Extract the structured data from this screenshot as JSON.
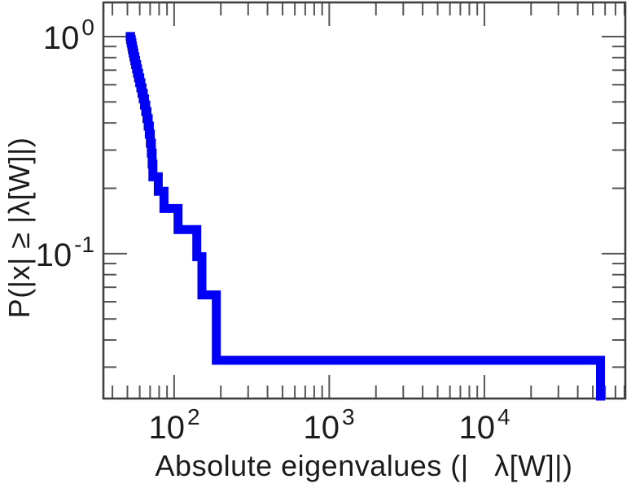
{
  "figure": {
    "background": "#ffffff",
    "frame_color": "#3f3f3f",
    "tick_color": "#555555",
    "text_color": "#1b1b1b",
    "line_color": "#0000f5"
  },
  "chart_data": {
    "type": "line",
    "subtype": "empirical-ccdf-step",
    "title": "",
    "xlabel": "Absolute eigenvalues (|   λ[W]|)",
    "ylabel": "P(|x| ≥ |λ[W]|)",
    "x_scale": "log",
    "y_scale": "log",
    "grid": false,
    "legend": "none",
    "xlim": [
      35,
      81000
    ],
    "ylim": [
      0.0215,
      1.436
    ],
    "n_eigenvalues": 31,
    "plateau_probabilities_note": "plateaus at k/31 from 1.0 down to 1/31 = 0.0323",
    "eigenvalues": [
      52.4,
      52.9,
      53.4,
      53.9,
      54.5,
      55.1,
      55.8,
      56.5,
      57.3,
      58.1,
      59.0,
      60.0,
      61.0,
      62.1,
      63.2,
      64.4,
      65.6,
      66.8,
      68.0,
      69.2,
      70.3,
      71.3,
      72.2,
      73.0,
      79,
      86,
      106,
      140,
      151,
      187,
      56000
    ],
    "x_ticks": [
      {
        "v": 100,
        "base": "10",
        "exp": "2"
      },
      {
        "v": 1000,
        "base": "10",
        "exp": "3"
      },
      {
        "v": 10000,
        "base": "10",
        "exp": "4"
      }
    ],
    "y_ticks": [
      {
        "v": 1,
        "base": "10",
        "exp": "0"
      },
      {
        "v": 0.1,
        "base": "10",
        "exp": "-1"
      }
    ],
    "x_minor_ticks": [
      40,
      50,
      60,
      70,
      80,
      90,
      200,
      300,
      400,
      500,
      600,
      700,
      800,
      900,
      2000,
      3000,
      4000,
      5000,
      6000,
      7000,
      8000,
      9000,
      20000,
      30000,
      40000,
      50000,
      60000,
      70000,
      80000
    ],
    "y_minor_ticks": [
      0.9,
      0.8,
      0.7,
      0.6,
      0.5,
      0.4,
      0.3,
      0.2,
      0.09,
      0.08,
      0.07,
      0.06,
      0.05,
      0.04,
      0.03
    ]
  }
}
